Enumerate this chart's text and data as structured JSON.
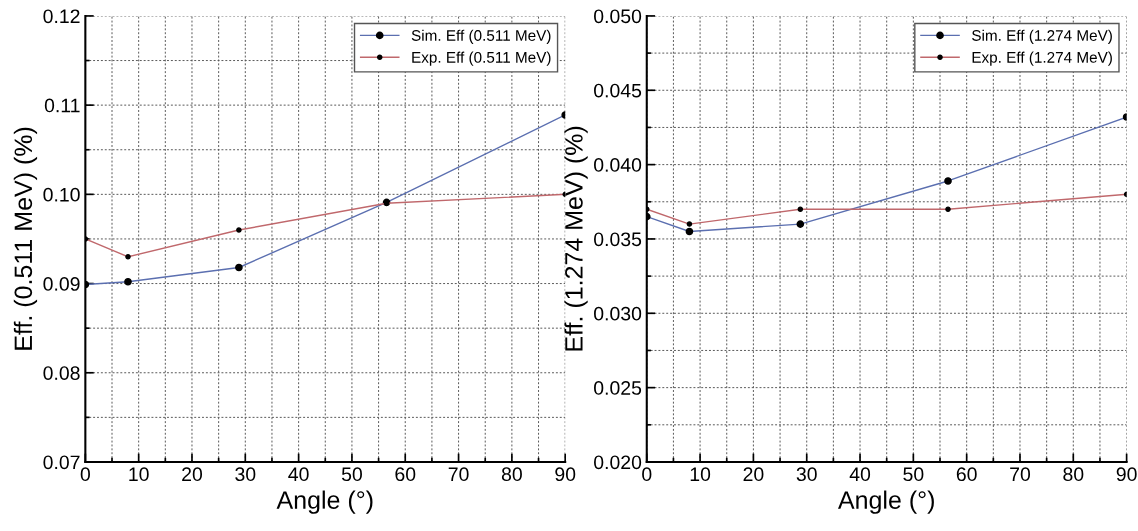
{
  "chart_data": [
    {
      "type": "line",
      "xlabel": "Angle (°)",
      "ylabel": "Eff. (0.511 MeV) (%)",
      "x": [
        0,
        8,
        28.8,
        56.5,
        90
      ],
      "series": [
        {
          "name": "Sim. Eff (0.511 MeV)",
          "color": "#5b6fb0",
          "values": [
            0.0899,
            0.0902,
            0.0918,
            0.0991,
            0.1089
          ]
        },
        {
          "name": "Exp. Eff (0.511 MeV)",
          "color": "#c0686c",
          "values": [
            0.095,
            0.093,
            0.096,
            0.099,
            0.1
          ]
        }
      ],
      "xlim": [
        0,
        90
      ],
      "xticks": [
        0,
        10,
        20,
        30,
        40,
        50,
        60,
        70,
        80,
        90
      ],
      "ylim": [
        0.07,
        0.12
      ],
      "yticks": [
        {
          "value": 0.07,
          "label": "0.07"
        },
        {
          "value": 0.08,
          "label": "0.08"
        },
        {
          "value": 0.09,
          "label": "0.09"
        },
        {
          "value": 0.1,
          "label": "0.10"
        },
        {
          "value": 0.11,
          "label": "0.11"
        },
        {
          "value": 0.12,
          "label": "0.12"
        }
      ],
      "grid": true,
      "legend": "top right",
      "marker": "circle",
      "line_style": "solid"
    },
    {
      "type": "line",
      "xlabel": "Angle (°)",
      "ylabel": "Eff. (1.274 MeV) (%)",
      "x": [
        0,
        8,
        28.8,
        56.5,
        90
      ],
      "series": [
        {
          "name": "Sim. Eff (1.274 MeV)",
          "color": "#5b6fb0",
          "values": [
            0.0365,
            0.0355,
            0.036,
            0.0389,
            0.0432
          ]
        },
        {
          "name": "Exp. Eff (1.274 MeV)",
          "color": "#c0686c",
          "values": [
            0.037,
            0.036,
            0.037,
            0.037,
            0.038
          ]
        }
      ],
      "xlim": [
        0,
        90
      ],
      "xticks": [
        0,
        10,
        20,
        30,
        40,
        50,
        60,
        70,
        80,
        90
      ],
      "ylim": [
        0.02,
        0.05
      ],
      "yticks": [
        {
          "value": 0.02,
          "label": "0.020"
        },
        {
          "value": 0.025,
          "label": "0.025"
        },
        {
          "value": 0.03,
          "label": "0.030"
        },
        {
          "value": 0.035,
          "label": "0.035"
        },
        {
          "value": 0.04,
          "label": "0.040"
        },
        {
          "value": 0.045,
          "label": "0.045"
        },
        {
          "value": 0.05,
          "label": "0.050"
        }
      ],
      "grid": true,
      "legend": "top right",
      "marker": "circle",
      "line_style": "solid"
    }
  ]
}
